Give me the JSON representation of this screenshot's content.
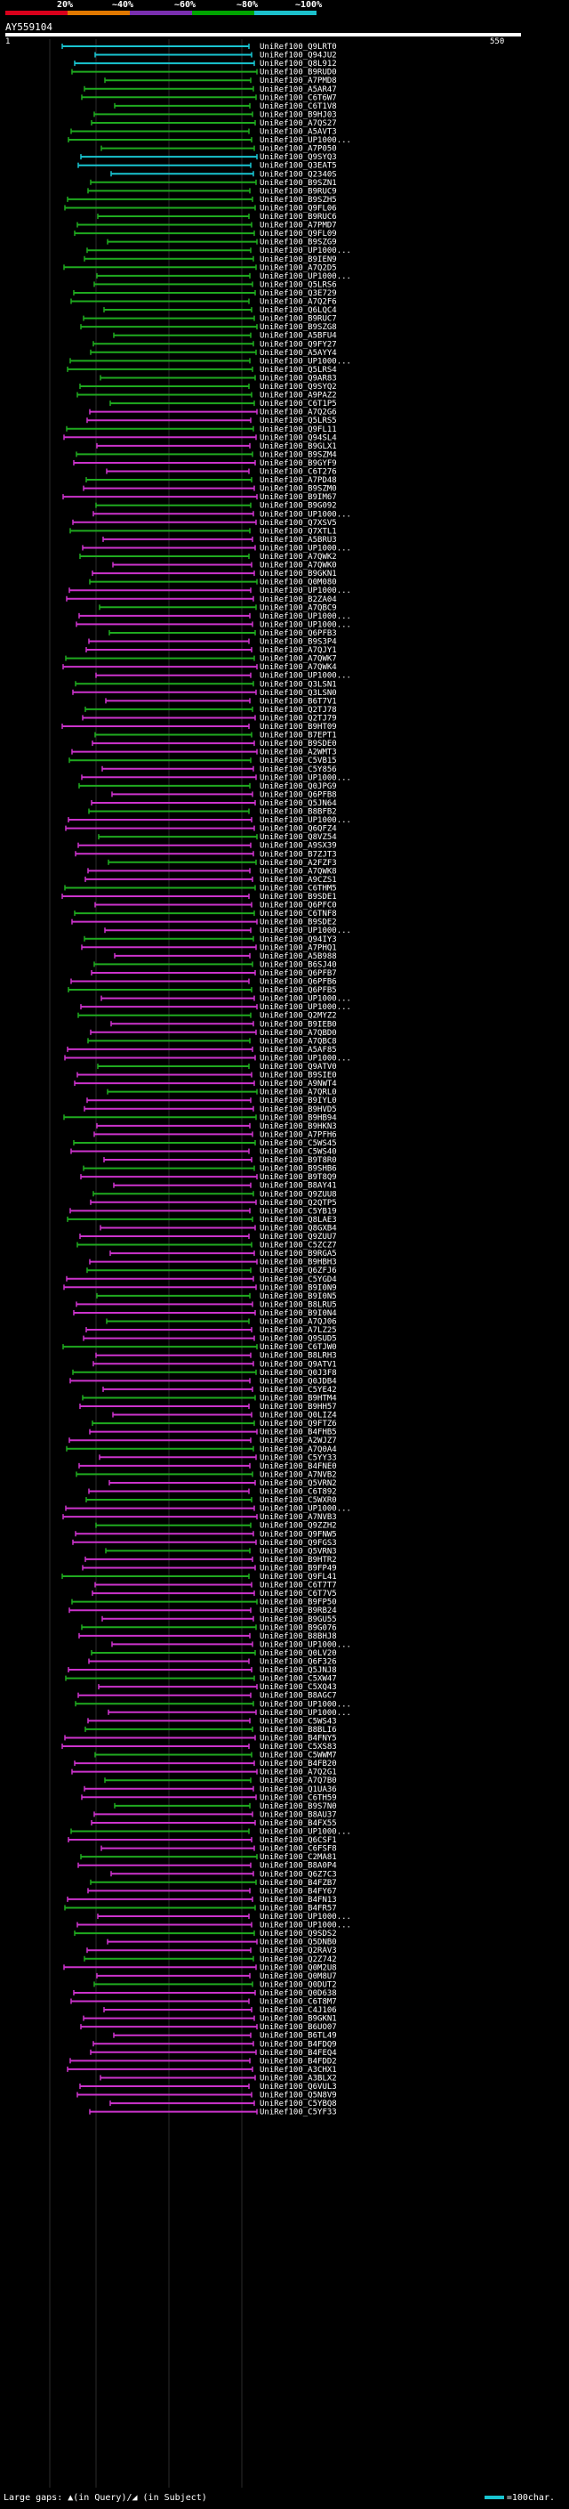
{
  "query_id": "AY559104",
  "query_start": "1",
  "query_end": "550",
  "scale_labels": [
    "20%",
    "~40%",
    "~60%",
    "~80%",
    "~100%"
  ],
  "colors": {
    "identity_20": "#d9001b",
    "identity_40": "#e07800",
    "identity_60": "#7a2fb0",
    "identity_80": "#00a400",
    "identity_100": "#1cc0cc",
    "magenta": "#cc33cc",
    "green": "#1faa1f",
    "cyan": "#19c4d0"
  },
  "footer": {
    "large_gaps": "Large gaps: ▲(in Query)/◢ (in Subject)",
    "scale_legend": "=100char."
  },
  "hits": [
    "UniRef100_Q9LRT0",
    "UniRef100_Q94JU2",
    "UniRef100_Q8L912",
    "UniRef100_B9RUD0",
    "UniRef100_A7PMD8",
    "UniRef100_A5AR47",
    "UniRef100_C6T6W7",
    "UniRef100_C6T1V8",
    "UniRef100_B9HJ03",
    "UniRef100_A7QS27",
    "UniRef100_A5AVT3",
    "UniRef100_UP1000...",
    "UniRef100_A7P050",
    "UniRef100_Q9SYQ3",
    "UniRef100_Q3EAT5",
    "UniRef100_Q2340S",
    "UniRef100_B9SZN1",
    "UniRef100_B9RUC9",
    "UniRef100_B9SZH5",
    "UniRef100_Q9FL06",
    "UniRef100_B9RUC6",
    "UniRef100_A7PMD7",
    "UniRef100_Q9FL09",
    "UniRef100_B9SZG9",
    "UniRef100_UP1000...",
    "UniRef100_B9IEN9",
    "UniRef100_A7Q2D5",
    "UniRef100_UP1000...",
    "UniRef100_Q5LRS6",
    "UniRef100_Q3E729",
    "UniRef100_A7Q2F6",
    "UniRef100_Q6LQC4",
    "UniRef100_B9RUC7",
    "UniRef100_B9SZG8",
    "UniRef100_A5BFU4",
    "UniRef100_Q9FY27",
    "UniRef100_A5AYY4",
    "UniRef100_UP1000...",
    "UniRef100_Q5LRS4",
    "UniRef100_Q9AR83",
    "UniRef100_Q9SYQ2",
    "UniRef100_A9PAZ2",
    "UniRef100_C6T1P5",
    "UniRef100_A7Q2G6",
    "UniRef100_Q5LRS5",
    "UniRef100_Q9FL11",
    "UniRef100_Q94SL4",
    "UniRef100_B9GLX1",
    "UniRef100_B9SZM4",
    "UniRef100_B9GYF9",
    "UniRef100_C6T276",
    "UniRef100_A7PD48",
    "UniRef100_B9SZM0",
    "UniRef100_B9IM67",
    "UniRef100_B9G092",
    "UniRef100_UP1000...",
    "UniRef100_Q7XSV5",
    "UniRef100_Q7XTL1",
    "UniRef100_A5BRU3",
    "UniRef100_UP1000...",
    "UniRef100_A7QWK2",
    "UniRef100_A7QWK0",
    "UniRef100_B9GKN1",
    "UniRef100_Q0M080",
    "UniRef100_UP1000...",
    "UniRef100_B2ZA04",
    "UniRef100_A7QBC9",
    "UniRef100_UP1000...",
    "UniRef100_UP1000...",
    "UniRef100_Q6PFB3",
    "UniRef100_B9S3P4",
    "UniRef100_A7QJY1",
    "UniRef100_A7QWK7",
    "UniRef100_A7QWK4",
    "UniRef100_UP1000...",
    "UniRef100_Q3LSN1",
    "UniRef100_Q3LSN0",
    "UniRef100_B6T7V1",
    "UniRef100_Q2TJ78",
    "UniRef100_Q2TJ79",
    "UniRef100_B9HT09",
    "UniRef100_B7EPT1",
    "UniRef100_B9SDE0",
    "UniRef100_A2WMT3",
    "UniRef100_C5VB15",
    "UniRef100_C5Y856",
    "UniRef100_UP1000...",
    "UniRef100_Q0JPG9",
    "UniRef100_Q6PFB8",
    "UniRef100_Q5JN64",
    "UniRef100_B8BFB2",
    "UniRef100_UP1000...",
    "UniRef100_Q6QFZ4",
    "UniRef100_Q8VZ54",
    "UniRef100_A9SX39",
    "UniRef100_B7ZJT3",
    "UniRef100_A2FZF3",
    "UniRef100_A7QWK8",
    "UniRef100_A9CZS1",
    "UniRef100_C6THM5",
    "UniRef100_B9SDE1",
    "UniRef100_Q6PFC0",
    "UniRef100_C6TNF8",
    "UniRef100_B9SDE2",
    "UniRef100_UP1000...",
    "UniRef100_Q94IY3",
    "UniRef100_A7PHQ1",
    "UniRef100_A5B988",
    "UniRef100_B6SJ40",
    "UniRef100_Q6PFB7",
    "UniRef100_Q6PFB6",
    "UniRef100_Q6PFB5",
    "UniRef100_UP1000...",
    "UniRef100_UP1000...",
    "UniRef100_Q2MYZ2",
    "UniRef100_B9IEB0",
    "UniRef100_A7QBD0",
    "UniRef100_A7QBC8",
    "UniRef100_A5AF85",
    "UniRef100_UP1000...",
    "UniRef100_Q9ATV0",
    "UniRef100_B9SIE0",
    "UniRef100_A9NWT4",
    "UniRef100_A7QRL0",
    "UniRef100_B9IYL0",
    "UniRef100_B9HVD5",
    "UniRef100_B9HB94",
    "UniRef100_B9HKN3",
    "UniRef100_A7PFH6",
    "UniRef100_C5WS45",
    "UniRef100_C5WS40",
    "UniRef100_B9T8R0",
    "UniRef100_B9SHB6",
    "UniRef100_B9T8Q9",
    "UniRef100_B8AY41",
    "UniRef100_Q9ZUU8",
    "UniRef100_Q2QTP5",
    "UniRef100_C5YB19",
    "UniRef100_Q8LAE3",
    "UniRef100_Q8GXB4",
    "UniRef100_Q9ZUU7",
    "UniRef100_C5ZCZ7",
    "UniRef100_B9RGA5",
    "UniRef100_B9HBH3",
    "UniRef100_Q6ZFJ6",
    "UniRef100_C5YGD4",
    "UniRef100_B9I0N9",
    "UniRef100_B9I0N5",
    "UniRef100_B8LRU5",
    "UniRef100_B9I0N4",
    "UniRef100_A7QJ06",
    "UniRef100_A7LZ25",
    "UniRef100_Q9SUD5",
    "UniRef100_C6TJW0",
    "UniRef100_B8LRH3",
    "UniRef100_Q9ATV1",
    "UniRef100_Q0J3F8",
    "UniRef100_Q0JDB4",
    "UniRef100_C5YE42",
    "UniRef100_B9HTM4",
    "UniRef100_B9HH57",
    "UniRef100_Q0LIZ4",
    "UniRef100_Q9FTZ6",
    "UniRef100_B4FHB5",
    "UniRef100_A2WJZ7",
    "UniRef100_A7Q0A4",
    "UniRef100_C5YY33",
    "UniRef100_B4FNE0",
    "UniRef100_A7NVB2",
    "UniRef100_Q5VRN2",
    "UniRef100_C6T892",
    "UniRef100_C5WXR0",
    "UniRef100_UP1000...",
    "UniRef100_A7NVB3",
    "UniRef100_Q9ZZH2",
    "UniRef100_Q9FNW5",
    "UniRef100_Q9FGS3",
    "UniRef100_Q5VRN3",
    "UniRef100_B9HTR2",
    "UniRef100_B9FP49",
    "UniRef100_Q9FL41",
    "UniRef100_C6T7T7",
    "UniRef100_C6T7V5",
    "UniRef100_B9FP50",
    "UniRef100_B9RB24",
    "UniRef100_B9GU55",
    "UniRef100_B9G076",
    "UniRef100_B8BHJ8",
    "UniRef100_UP1000...",
    "UniRef100_Q0LV20",
    "UniRef100_Q6F326",
    "UniRef100_Q5JNJ8",
    "UniRef100_C5XW47",
    "UniRef100_C5XQ43",
    "UniRef100_B8AGC7",
    "UniRef100_UP1000...",
    "UniRef100_UP1000...",
    "UniRef100_C5WS43",
    "UniRef100_B8BLI6",
    "UniRef100_B4FNY5",
    "UniRef100_C5XS83",
    "UniRef100_C5WWM7",
    "UniRef100_B4FB20",
    "UniRef100_A7Q2G1",
    "UniRef100_A7Q7B0",
    "UniRef100_Q1UA36",
    "UniRef100_C6TH59",
    "UniRef100_B9S7N0",
    "UniRef100_B8AU37",
    "UniRef100_B4FX55",
    "UniRef100_UP1000...",
    "UniRef100_Q6CSF1",
    "UniRef100_C6FSF8",
    "UniRef100_C2MA81",
    "UniRef100_B8A0P4",
    "UniRef100_Q6Z7C3",
    "UniRef100_B4FZB7",
    "UniRef100_B4FY67",
    "UniRef100_B4FN13",
    "UniRef100_B4FR57",
    "UniRef100_UP1000...",
    "UniRef100_UP1000...",
    "UniRef100_Q9SDS2",
    "UniRef100_Q5DNB0",
    "UniRef100_Q2RAV3",
    "UniRef100_Q2Z742",
    "UniRef100_Q0M2U8",
    "UniRef100_Q0M8U7",
    "UniRef100_Q0DUT2",
    "UniRef100_Q0D638",
    "UniRef100_C6T8M7",
    "UniRef100_C4J106",
    "UniRef100_B9GKN1",
    "UniRef100_B6UO07",
    "UniRef100_B6TL49",
    "UniRef100_B4FDQ9",
    "UniRef100_B4FEQ4",
    "UniRef100_B4FDD2",
    "UniRef100_A3CHX1",
    "UniRef100_A3BLX2",
    "UniRef100_Q6VUL3",
    "UniRef100_Q5N8V9",
    "UniRef100_C5YBQ8",
    "UniRef100_C5YF33"
  ]
}
